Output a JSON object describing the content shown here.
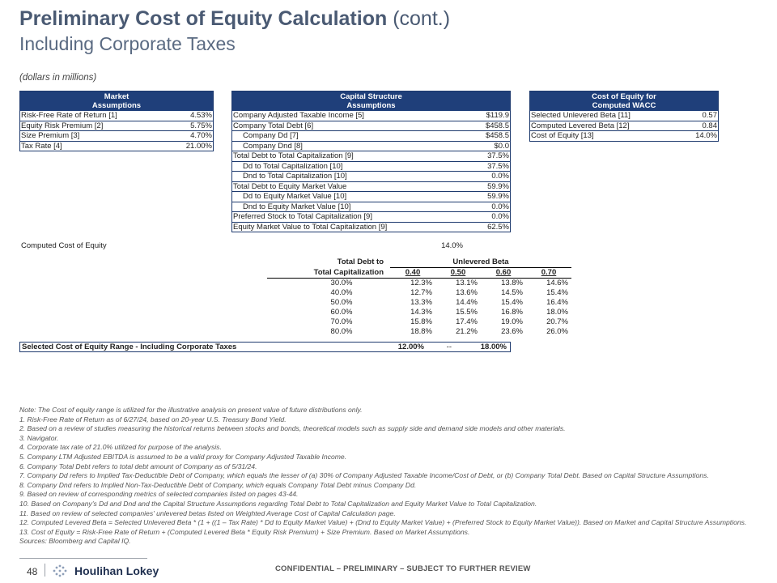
{
  "header": {
    "title_bold": "Preliminary Cost of Equity Calculation",
    "title_light": "(cont.)",
    "subtitle": "Including Corporate Taxes",
    "units": "(dollars in millions)"
  },
  "market_assumptions": {
    "header_line1": "Market",
    "header_line2": "Assumptions",
    "rows": [
      {
        "label": "Risk-Free Rate of Return [1]",
        "value": "4.53%"
      },
      {
        "label": "Equity Risk Premium [2]",
        "value": "5.75%"
      },
      {
        "label": "Size Premium [3]",
        "value": "4.70%"
      },
      {
        "label": "Tax Rate [4]",
        "value": "21.00%"
      }
    ]
  },
  "capital_structure": {
    "header_line1": "Capital Structure",
    "header_line2": "Assumptions",
    "rows": [
      {
        "label": "Company Adjusted Taxable Income [5]",
        "value": "$119.9"
      },
      {
        "label": "Company Total Debt [6]",
        "value": "$458.5"
      },
      {
        "label": "Company Dd [7]",
        "value": "$458.5"
      },
      {
        "label": "Company Dnd [8]",
        "value": "$0.0"
      },
      {
        "label": "Total Debt to Total Capitalization [9]",
        "value": "37.5%"
      },
      {
        "label": "Dd to Total Capitalization [10]",
        "value": "37.5%"
      },
      {
        "label": "Dnd to Total Capitalization [10]",
        "value": "0.0%"
      },
      {
        "label": "Total Debt to Equity Market Value",
        "value": "59.9%"
      },
      {
        "label": "Dd to Equity Market Value [10]",
        "value": "59.9%"
      },
      {
        "label": "Dnd to Equity Market Value [10]",
        "value": "0.0%"
      },
      {
        "label": "Preferred Stock to Total Capitalization [9]",
        "value": "0.0%"
      },
      {
        "label": "Equity Market Value to Total Capitalization [9]",
        "value": "62.5%"
      }
    ]
  },
  "coe_wacc": {
    "header_line1": "Cost of Equity for",
    "header_line2": "Computed WACC",
    "rows": [
      {
        "label": "Selected Unlevered Beta [11]",
        "value": "0.57"
      },
      {
        "label": "Computed Levered Beta [12]",
        "value": "0.84"
      },
      {
        "label": "Cost of Equity [13]",
        "value": "14.0%"
      }
    ]
  },
  "computed_coe": {
    "label": "Computed Cost of Equity",
    "value": "14.0%"
  },
  "sensitivity": {
    "row_header_line1": "Total Debt to",
    "row_header_line2": "Total Capitalization",
    "col_header": "Unlevered Beta",
    "betas": [
      "0.40",
      "0.50",
      "0.60",
      "0.70"
    ],
    "rows": [
      {
        "label": "30.0%",
        "values": [
          "12.3%",
          "13.1%",
          "13.8%",
          "14.6%"
        ]
      },
      {
        "label": "40.0%",
        "values": [
          "12.7%",
          "13.6%",
          "14.5%",
          "15.4%"
        ]
      },
      {
        "label": "50.0%",
        "values": [
          "13.3%",
          "14.4%",
          "15.4%",
          "16.4%"
        ]
      },
      {
        "label": "60.0%",
        "values": [
          "14.3%",
          "15.5%",
          "16.8%",
          "18.0%"
        ]
      },
      {
        "label": "70.0%",
        "values": [
          "15.8%",
          "17.4%",
          "19.0%",
          "20.7%"
        ]
      },
      {
        "label": "80.0%",
        "values": [
          "18.8%",
          "21.2%",
          "23.6%",
          "26.0%"
        ]
      }
    ]
  },
  "selected_range": {
    "label": "Selected Cost of Equity Range - Including Corporate Taxes",
    "low": "12.00%",
    "sep": "--",
    "high": "18.00%"
  },
  "notes": [
    "Note: The Cost of equity range is utilized for the illustrative analysis on present value of future distributions only.",
    "1. Risk-Free Rate of Return as of 6/27/24, based on 20-year U.S. Treasury Bond Yield.",
    "2. Based on a review of studies measuring the historical returns between stocks and bonds, theoretical models such as supply side and demand side models and other materials.",
    "3. Navigator.",
    "4. Corporate tax rate of 21.0% utilized for purpose of the analysis.",
    "5. Company LTM Adjusted EBITDA is assumed to be a valid proxy for Company Adjusted Taxable Income.",
    "6. Company Total Debt refers to total debt amount of Company as of 5/31/24.",
    "7. Company Dd refers to Implied Tax-Deductible Debt of Company, which equals the lesser of (a) 30% of Company Adjusted Taxable Income/Cost of Debt, or (b) Company Total Debt. Based on Capital Structure Assumptions.",
    "8. Company Dnd refers to Implied Non-Tax-Deductible Debt of Company, which equals Company Total Debt minus Company Dd.",
    "9. Based on review of corresponding metrics of selected companies listed on pages 43-44.",
    "10. Based on Company's Dd and Dnd and the Capital Structure Assumptions regarding Total Debt to Total Capitalization and Equity Market Value to Total Capitalization.",
    "11. Based on review of selected companies' unlevered betas listed on Weighted Average Cost of Capital Calculation page.",
    "12. Computed Levered Beta = Selected Unlevered Beta * (1 + ((1 – Tax Rate) * Dd to Equity Market Value) + (Dnd to Equity Market Value) + (Preferred Stock to Equity Market Value)). Based on Market and Capital Structure Assumptions.",
    "13. Cost of Equity = Risk-Free Rate of Return + (Computed Levered Beta * Equity Risk Premium) + Size Premium. Based on Market Assumptions.",
    "Sources: Bloomberg and Capital IQ."
  ],
  "footer": {
    "page_number": "48",
    "logo_text": "Houlihan Lokey",
    "confidential": "CONFIDENTIAL – PRELIMINARY – SUBJECT TO FURTHER REVIEW"
  },
  "colors": {
    "header_fill": "#1f3f7a",
    "title": "#4a5a73"
  }
}
